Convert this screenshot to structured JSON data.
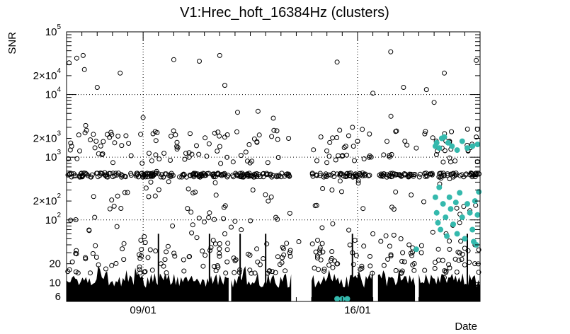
{
  "chart_data": {
    "type": "scatter",
    "title": "V1:Hrec_hoft_16384Hz (clusters)",
    "xlabel": "Date",
    "ylabel": "SNR",
    "x_scale": "time",
    "xlim": [
      "2022-09-06T12:00:00Z",
      "2022-09-20T00:00:00Z"
    ],
    "y_scale": "log",
    "ylim": [
      5,
      100000
    ],
    "grid": true,
    "x_ticks": [
      {
        "label": "09/01",
        "value": "2022-09-09T00:00:00Z"
      },
      {
        "label": "16/01",
        "value": "2022-09-16T00:00:00Z"
      }
    ],
    "y_ticks": [
      {
        "label": "6",
        "value": 6
      },
      {
        "label": "10",
        "value": 10
      },
      {
        "label": "20",
        "value": 20
      },
      {
        "label": "10",
        "exponent": "2",
        "value": 100
      },
      {
        "label": "2×10",
        "exponent": "2",
        "value": 200
      },
      {
        "label": "10",
        "exponent": "3",
        "value": 1000
      },
      {
        "label": "2×10",
        "exponent": "3",
        "value": 2000
      },
      {
        "label": "10",
        "exponent": "4",
        "value": 10000
      },
      {
        "label": "2×10",
        "exponent": "4",
        "value": 20000
      },
      {
        "label": "10",
        "exponent": "5",
        "value": 100000
      }
    ],
    "colors": {
      "all": "#000000",
      "selected": "#35b9ad"
    },
    "series": [
      {
        "style": "open-circle",
        "points": [
          [
            "2022-09-06T14:00:00Z",
            32000
          ],
          [
            "2022-09-06T20:00:00Z",
            38000
          ],
          [
            "2022-09-07T01:00:00Z",
            42000
          ],
          [
            "2022-09-07T02:00:00Z",
            25000
          ],
          [
            "2022-09-07T03:00:00Z",
            3200
          ],
          [
            "2022-09-06T16:00:00Z",
            1500
          ],
          [
            "2022-09-07T12:00:00Z",
            13000
          ],
          [
            "2022-09-08T06:00:00Z",
            22000
          ],
          [
            "2022-09-09T00:00:00Z",
            4300
          ],
          [
            "2022-09-10T00:00:00Z",
            36000
          ],
          [
            "2022-09-10T20:00:00Z",
            34000
          ],
          [
            "2022-09-11T12:00:00Z",
            42000
          ],
          [
            "2022-09-11T16:00:00Z",
            14000
          ],
          [
            "2022-09-12T02:00:00Z",
            5200
          ],
          [
            "2022-09-12T18:00:00Z",
            5400
          ],
          [
            "2022-09-13T06:00:00Z",
            4200
          ],
          [
            "2022-09-13T18:00:00Z",
            2000
          ],
          [
            "2022-09-15T08:00:00Z",
            33000
          ],
          [
            "2022-09-15T10:00:00Z",
            2700
          ],
          [
            "2022-09-15T20:00:00Z",
            3000
          ],
          [
            "2022-09-16T00:00:00Z",
            1800
          ],
          [
            "2022-09-16T12:00:00Z",
            10500
          ],
          [
            "2022-09-17T02:00:00Z",
            48000
          ],
          [
            "2022-09-17T02:10:00Z",
            4500
          ],
          [
            "2022-09-17T12:00:00Z",
            13000
          ],
          [
            "2022-09-17T22:00:00Z",
            1400
          ],
          [
            "2022-09-18T06:00:00Z",
            12000
          ],
          [
            "2022-09-18T20:00:00Z",
            22000
          ],
          [
            "2022-09-18T12:00:00Z",
            7500
          ],
          [
            "2022-09-19T21:00:00Z",
            35000
          ],
          [
            "2022-09-06T13:00:00Z",
            15
          ],
          [
            "2022-09-07T10:00:00Z",
            110
          ],
          [
            "2022-09-07T22:00:00Z",
            150
          ],
          [
            "2022-09-08T04:00:00Z",
            240
          ],
          [
            "2022-09-09T06:00:00Z",
            400
          ],
          [
            "2022-09-09T23:00:00Z",
            80
          ],
          [
            "2022-09-11T04:00:00Z",
            130
          ],
          [
            "2022-09-11T16:00:00Z",
            60
          ],
          [
            "2022-09-12T00:00:00Z",
            95
          ],
          [
            "2022-09-12T14:00:00Z",
            300
          ],
          [
            "2022-09-13T02:00:00Z",
            200
          ],
          [
            "2022-09-13T08:00:00Z",
            110
          ],
          [
            "2022-09-14T02:00:00Z",
            45
          ],
          [
            "2022-09-14T16:00:00Z",
            170
          ],
          [
            "2022-09-15T04:00:00Z",
            300
          ],
          [
            "2022-09-15T20:00:00Z",
            30
          ],
          [
            "2022-09-16T12:00:00Z",
            60
          ],
          [
            "2022-09-17T10:00:00Z",
            50
          ],
          [
            "2022-09-17T18:00:00Z",
            250
          ],
          [
            "2022-09-18T02:00:00Z",
            30
          ],
          [
            "2022-09-18T20:00:00Z",
            12
          ],
          [
            "2022-09-19T08:00:00Z",
            90
          ],
          [
            "2022-09-19T16:00:00Z",
            140
          ],
          [
            "2022-09-19T20:00:00Z",
            40
          ]
        ]
      },
      {
        "style": "filled-circle",
        "color": "#35b9ad",
        "points": [
          [
            "2022-09-18T13:00:00Z",
            1500
          ],
          [
            "2022-09-18T14:00:00Z",
            1700
          ],
          [
            "2022-09-18T16:00:00Z",
            1400
          ],
          [
            "2022-09-18T18:00:00Z",
            2000
          ],
          [
            "2022-09-18T20:00:00Z",
            2100
          ],
          [
            "2022-09-18T23:00:00Z",
            1700
          ],
          [
            "2022-09-19T02:00:00Z",
            1500
          ],
          [
            "2022-09-19T06:00:00Z",
            1300
          ],
          [
            "2022-09-19T10:00:00Z",
            1800
          ],
          [
            "2022-09-19T14:00:00Z",
            1400
          ],
          [
            "2022-09-19T18:00:00Z",
            1500
          ],
          [
            "2022-09-19T22:00:00Z",
            1600
          ],
          [
            "2022-09-18T13:00:00Z",
            230
          ],
          [
            "2022-09-18T14:00:00Z",
            130
          ],
          [
            "2022-09-18T15:00:00Z",
            90
          ],
          [
            "2022-09-18T16:00:00Z",
            330
          ],
          [
            "2022-09-18T17:00:00Z",
            70
          ],
          [
            "2022-09-18T19:00:00Z",
            180
          ],
          [
            "2022-09-18T21:00:00Z",
            110
          ],
          [
            "2022-09-18T22:00:00Z",
            55
          ],
          [
            "2022-09-19T00:00:00Z",
            230
          ],
          [
            "2022-09-19T01:00:00Z",
            150
          ],
          [
            "2022-09-19T03:00:00Z",
            85
          ],
          [
            "2022-09-19T05:00:00Z",
            190
          ],
          [
            "2022-09-19T06:00:00Z",
            60
          ],
          [
            "2022-09-19T08:00:00Z",
            270
          ],
          [
            "2022-09-19T10:00:00Z",
            110
          ],
          [
            "2022-09-19T12:00:00Z",
            50
          ],
          [
            "2022-09-19T14:00:00Z",
            180
          ],
          [
            "2022-09-19T16:00:00Z",
            130
          ],
          [
            "2022-09-19T18:00:00Z",
            70
          ],
          [
            "2022-09-19T20:00:00Z",
            200
          ],
          [
            "2022-09-19T22:00:00Z",
            120
          ],
          [
            "2022-09-19T23:00:00Z",
            280
          ],
          [
            "2022-09-19T19:00:00Z",
            45
          ],
          [
            "2022-09-19T21:00:00Z",
            40
          ],
          [
            "2022-09-17T22:00:00Z",
            34
          ],
          [
            "2022-09-15T08:00:00Z",
            5.5
          ],
          [
            "2022-09-15T12:00:00Z",
            5.5
          ],
          [
            "2022-09-15T16:00:00Z",
            5.5
          ]
        ]
      }
    ]
  }
}
